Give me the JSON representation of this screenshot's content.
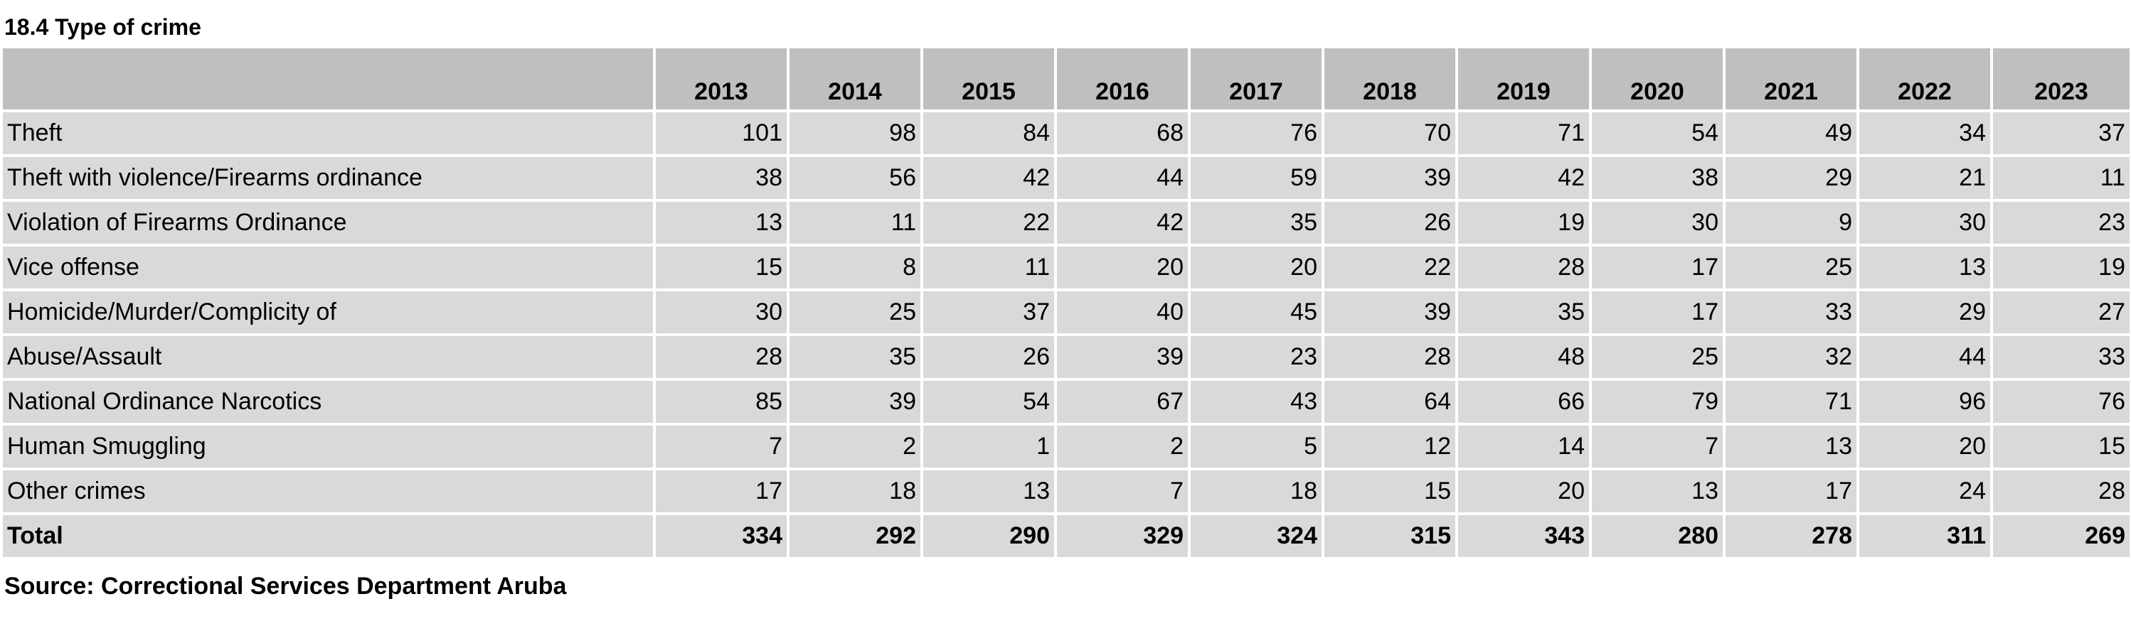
{
  "title": "18.4 Type of crime",
  "source": "Source: Correctional Services Department Aruba",
  "table": {
    "corner_header": "",
    "years": [
      "2013",
      "2014",
      "2015",
      "2016",
      "2017",
      "2018",
      "2019",
      "2020",
      "2021",
      "2022",
      "2023"
    ],
    "rows": [
      {
        "label": "Theft",
        "values": [
          "101",
          "98",
          "84",
          "68",
          "76",
          "70",
          "71",
          "54",
          "49",
          "34",
          "37"
        ]
      },
      {
        "label": "Theft with violence/Firearms ordinance",
        "values": [
          "38",
          "56",
          "42",
          "44",
          "59",
          "39",
          "42",
          "38",
          "29",
          "21",
          "11"
        ]
      },
      {
        "label": "Violation of Firearms Ordinance",
        "values": [
          "13",
          "11",
          "22",
          "42",
          "35",
          "26",
          "19",
          "30",
          "9",
          "30",
          "23"
        ]
      },
      {
        "label": "Vice offense",
        "values": [
          "15",
          "8",
          "11",
          "20",
          "20",
          "22",
          "28",
          "17",
          "25",
          "13",
          "19"
        ]
      },
      {
        "label": "Homicide/Murder/Complicity of",
        "values": [
          "30",
          "25",
          "37",
          "40",
          "45",
          "39",
          "35",
          "17",
          "33",
          "29",
          "27"
        ]
      },
      {
        "label": "Abuse/Assault",
        "values": [
          "28",
          "35",
          "26",
          "39",
          "23",
          "28",
          "48",
          "25",
          "32",
          "44",
          "33"
        ]
      },
      {
        "label": "National Ordinance Narcotics",
        "values": [
          "85",
          "39",
          "54",
          "67",
          "43",
          "64",
          "66",
          "79",
          "71",
          "96",
          "76"
        ]
      },
      {
        "label": "Human Smuggling",
        "values": [
          "7",
          "2",
          "1",
          "2",
          "5",
          "12",
          "14",
          "7",
          "13",
          "20",
          "15"
        ]
      },
      {
        "label": "Other crimes",
        "values": [
          "17",
          "18",
          "13",
          "7",
          "18",
          "15",
          "20",
          "13",
          "17",
          "24",
          "28"
        ]
      }
    ],
    "total": {
      "label": "Total",
      "values": [
        "334",
        "292",
        "290",
        "329",
        "324",
        "315",
        "343",
        "280",
        "278",
        "311",
        "269"
      ]
    }
  },
  "colors": {
    "header_fill": "#bfbfbf",
    "row_fill": "#d9d9d9",
    "gridline": "#ffffff"
  }
}
